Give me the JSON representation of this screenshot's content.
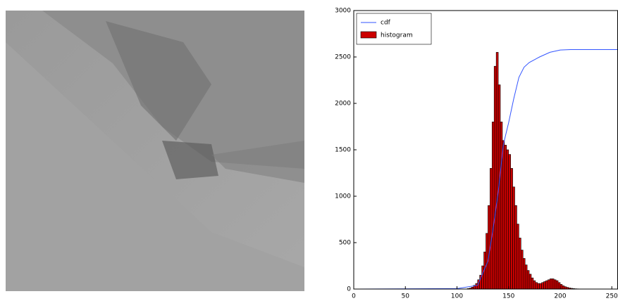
{
  "chart_data": {
    "type": "histogram",
    "name": "histogram",
    "color": "#cc0000",
    "bins": [
      110,
      112,
      114,
      116,
      118,
      120,
      122,
      124,
      126,
      128,
      130,
      132,
      134,
      136,
      138,
      140,
      142,
      144,
      146,
      148,
      150,
      152,
      154,
      156,
      158,
      160,
      162,
      164,
      166,
      168,
      170,
      172,
      174,
      176,
      178,
      180,
      182,
      184,
      186,
      188,
      190,
      192,
      194,
      196,
      198,
      200,
      202,
      204,
      206,
      208,
      210,
      212,
      214,
      216,
      218,
      220
    ],
    "values": [
      5,
      10,
      20,
      40,
      60,
      100,
      150,
      250,
      400,
      600,
      900,
      1300,
      1800,
      2400,
      2550,
      2200,
      1800,
      1600,
      1550,
      1500,
      1450,
      1300,
      1100,
      900,
      700,
      550,
      420,
      330,
      260,
      200,
      160,
      120,
      90,
      70,
      60,
      60,
      70,
      80,
      90,
      100,
      110,
      110,
      100,
      90,
      70,
      50,
      35,
      25,
      18,
      12,
      8,
      5,
      3,
      2,
      1
    ],
    "cdf": {
      "name": "cdf",
      "color": "#3355ff",
      "x": [
        0,
        100,
        120,
        130,
        135,
        140,
        145,
        150,
        155,
        160,
        165,
        170,
        180,
        190,
        200,
        210,
        256
      ],
      "values": [
        0,
        5,
        40,
        300,
        650,
        1050,
        1560,
        1790,
        2050,
        2280,
        2390,
        2440,
        2500,
        2550,
        2575,
        2580,
        2580
      ]
    },
    "xlim": [
      0,
      256
    ],
    "ylim": [
      0,
      3000
    ],
    "xticks": [
      0,
      50,
      100,
      150,
      200,
      250
    ],
    "yticks": [
      0,
      500,
      1000,
      1500,
      2000,
      2500,
      3000
    ],
    "legend": "upper left"
  }
}
